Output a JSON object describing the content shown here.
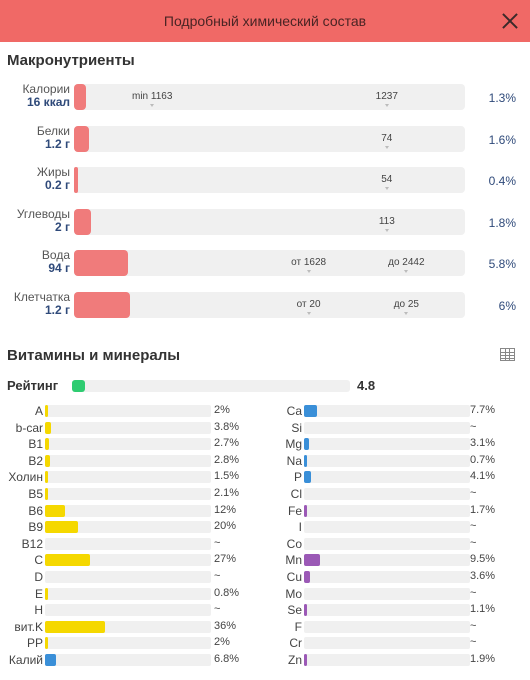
{
  "header": {
    "title": "Подробный химический состав"
  },
  "colors": {
    "header": "#f06966",
    "macro_fill": "#f07b7b",
    "vitamin": "#f5d800",
    "mineral_blue": "#3a8fd8",
    "mineral_purple": "#9b59b6",
    "rating": "#2ecc71"
  },
  "macro": {
    "title": "Макронутриенты",
    "rows": [
      {
        "name": "Калории",
        "amount": "16 ккал",
        "fill": 0.013,
        "marks": [
          {
            "label": "min 1163",
            "at": 0.2
          },
          {
            "label": "1237",
            "at": 0.8
          }
        ],
        "pct": "1.3%"
      },
      {
        "name": "Белки",
        "amount": "1.2 г",
        "fill": 0.016,
        "marks": [
          {
            "label": "74",
            "at": 0.8
          }
        ],
        "pct": "1.6%"
      },
      {
        "name": "Жиры",
        "amount": "0.2 г",
        "fill": 0.004,
        "marks": [
          {
            "label": "54",
            "at": 0.8
          }
        ],
        "pct": "0.4%"
      },
      {
        "name": "Углеводы",
        "amount": "2 г",
        "fill": 0.018,
        "marks": [
          {
            "label": "113",
            "at": 0.8
          }
        ],
        "pct": "1.8%"
      },
      {
        "name": "Вода",
        "amount": "94 г",
        "fill": 0.058,
        "marks": [
          {
            "label": "от 1628",
            "at": 0.6
          },
          {
            "label": "до 2442",
            "at": 0.85
          }
        ],
        "pct": "5.8%"
      },
      {
        "name": "Клетчатка",
        "amount": "1.2 г",
        "fill": 0.06,
        "marks": [
          {
            "label": "от 20",
            "at": 0.6
          },
          {
            "label": "до 25",
            "at": 0.85
          }
        ],
        "pct": "6%"
      }
    ]
  },
  "vm": {
    "title": "Витамины и минералы",
    "rating_label": "Рейтинг",
    "rating_value": "4.8",
    "rating_fill": 0.048,
    "vitamins": [
      {
        "name": "A",
        "value": "2%",
        "fill": 0.02
      },
      {
        "name": "b-car",
        "value": "3.8%",
        "fill": 0.038
      },
      {
        "name": "B1",
        "value": "2.7%",
        "fill": 0.027
      },
      {
        "name": "B2",
        "value": "2.8%",
        "fill": 0.028
      },
      {
        "name": "Холин",
        "value": "1.5%",
        "fill": 0.015
      },
      {
        "name": "B5",
        "value": "2.1%",
        "fill": 0.021
      },
      {
        "name": "B6",
        "value": "12%",
        "fill": 0.12
      },
      {
        "name": "B9",
        "value": "20%",
        "fill": 0.2
      },
      {
        "name": "B12",
        "value": "~",
        "fill": 0
      },
      {
        "name": "C",
        "value": "27%",
        "fill": 0.27
      },
      {
        "name": "D",
        "value": "~",
        "fill": 0
      },
      {
        "name": "E",
        "value": "0.8%",
        "fill": 0.008
      },
      {
        "name": "H",
        "value": "~",
        "fill": 0
      },
      {
        "name": "вит.K",
        "value": "36%",
        "fill": 0.36
      },
      {
        "name": "PP",
        "value": "2%",
        "fill": 0.02
      },
      {
        "name": "Калий",
        "value": "6.8%",
        "fill": 0.068,
        "color": "blue"
      }
    ],
    "minerals": [
      {
        "name": "Ca",
        "value": "7.7%",
        "fill": 0.077,
        "color": "blue"
      },
      {
        "name": "Si",
        "value": "~",
        "fill": 0,
        "color": "blue"
      },
      {
        "name": "Mg",
        "value": "3.1%",
        "fill": 0.031,
        "color": "blue"
      },
      {
        "name": "Na",
        "value": "0.7%",
        "fill": 0.007,
        "color": "blue"
      },
      {
        "name": "P",
        "value": "4.1%",
        "fill": 0.041,
        "color": "blue"
      },
      {
        "name": "Cl",
        "value": "~",
        "fill": 0,
        "color": "blue"
      },
      {
        "name": "Fe",
        "value": "1.7%",
        "fill": 0.017,
        "color": "purple"
      },
      {
        "name": "I",
        "value": "~",
        "fill": 0,
        "color": "purple"
      },
      {
        "name": "Co",
        "value": "~",
        "fill": 0,
        "color": "purple"
      },
      {
        "name": "Mn",
        "value": "9.5%",
        "fill": 0.095,
        "color": "purple"
      },
      {
        "name": "Cu",
        "value": "3.6%",
        "fill": 0.036,
        "color": "purple"
      },
      {
        "name": "Mo",
        "value": "~",
        "fill": 0,
        "color": "purple"
      },
      {
        "name": "Se",
        "value": "1.1%",
        "fill": 0.011,
        "color": "purple"
      },
      {
        "name": "F",
        "value": "~",
        "fill": 0,
        "color": "purple"
      },
      {
        "name": "Cr",
        "value": "~",
        "fill": 0,
        "color": "purple"
      },
      {
        "name": "Zn",
        "value": "1.9%",
        "fill": 0.019,
        "color": "purple"
      }
    ]
  }
}
